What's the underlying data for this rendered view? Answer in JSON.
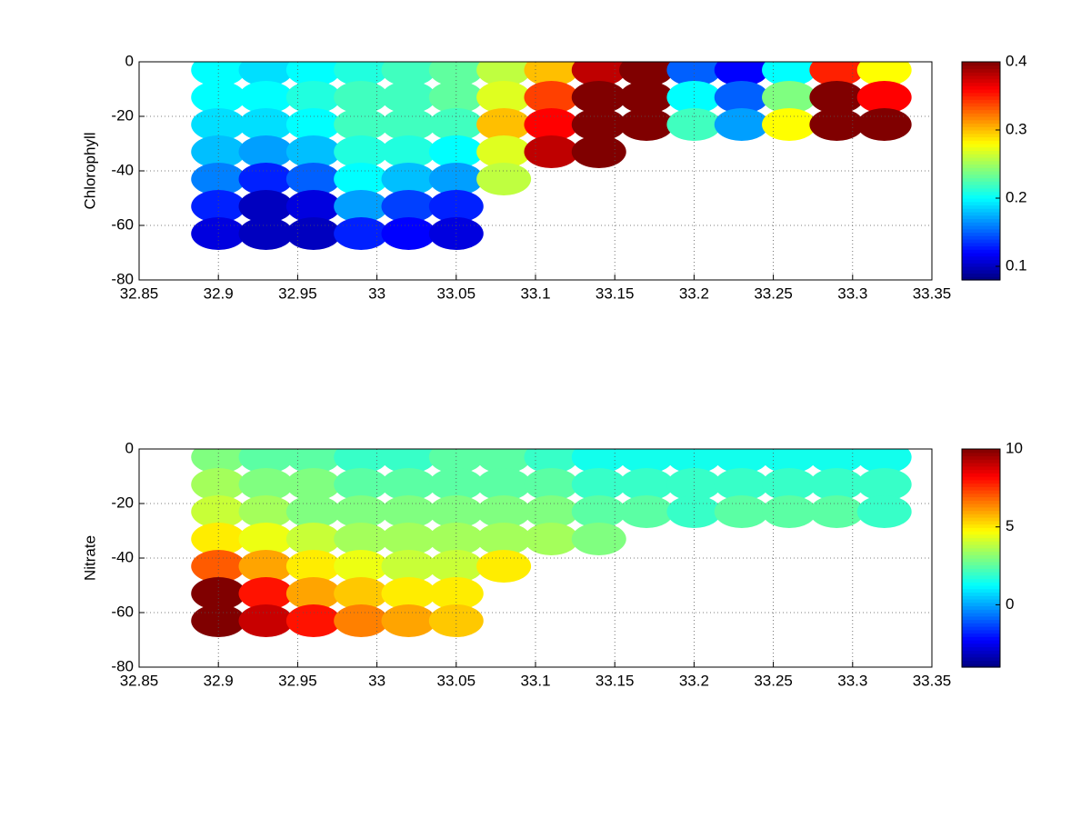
{
  "chart_data": [
    {
      "type": "scatter",
      "ylabel": "Chlorophyll",
      "colormap": "jet",
      "grid": true,
      "xlim": [
        32.85,
        33.35
      ],
      "xticks": [
        32.85,
        32.9,
        32.95,
        33,
        33.05,
        33.1,
        33.15,
        33.2,
        33.25,
        33.3,
        33.35
      ],
      "ylim": [
        -80,
        0
      ],
      "yticks": [
        -80,
        -60,
        -40,
        -20,
        0
      ],
      "clim": [
        0.08,
        0.4
      ],
      "cticks": [
        0.1,
        0.2,
        0.3,
        0.4
      ],
      "x": [
        32.9,
        32.9,
        32.9,
        32.9,
        32.9,
        32.9,
        32.9,
        32.93,
        32.93,
        32.93,
        32.93,
        32.93,
        32.93,
        32.93,
        32.96,
        32.96,
        32.96,
        32.96,
        32.96,
        32.96,
        32.96,
        32.99,
        32.99,
        32.99,
        32.99,
        32.99,
        32.99,
        32.99,
        33.02,
        33.02,
        33.02,
        33.02,
        33.02,
        33.02,
        33.02,
        33.05,
        33.05,
        33.05,
        33.05,
        33.05,
        33.05,
        33.05,
        33.08,
        33.08,
        33.08,
        33.08,
        33.08,
        33.11,
        33.11,
        33.11,
        33.11,
        33.14,
        33.14,
        33.14,
        33.14,
        33.17,
        33.17,
        33.17,
        33.2,
        33.2,
        33.2,
        33.23,
        33.23,
        33.23,
        33.26,
        33.26,
        33.26,
        33.29,
        33.29,
        33.29,
        33.32,
        33.32,
        33.32
      ],
      "y": [
        -3,
        -13,
        -23,
        -33,
        -43,
        -53,
        -63,
        -3,
        -13,
        -23,
        -33,
        -43,
        -53,
        -63,
        -3,
        -13,
        -23,
        -33,
        -43,
        -53,
        -63,
        -3,
        -13,
        -23,
        -33,
        -43,
        -53,
        -63,
        -3,
        -13,
        -23,
        -33,
        -43,
        -53,
        -63,
        -3,
        -13,
        -23,
        -33,
        -43,
        -53,
        -63,
        -3,
        -13,
        -23,
        -33,
        -43,
        -3,
        -13,
        -23,
        -33,
        -3,
        -13,
        -23,
        -33,
        -3,
        -13,
        -23,
        -3,
        -13,
        -23,
        -3,
        -13,
        -23,
        -3,
        -13,
        -23,
        -3,
        -13,
        -23,
        -3,
        -13,
        -23
      ],
      "c": [
        0.2,
        0.2,
        0.19,
        0.18,
        0.16,
        0.13,
        0.11,
        0.19,
        0.2,
        0.19,
        0.17,
        0.13,
        0.1,
        0.1,
        0.2,
        0.21,
        0.2,
        0.18,
        0.15,
        0.11,
        0.1,
        0.21,
        0.22,
        0.22,
        0.21,
        0.2,
        0.17,
        0.13,
        0.22,
        0.22,
        0.22,
        0.21,
        0.18,
        0.14,
        0.12,
        0.23,
        0.23,
        0.22,
        0.2,
        0.17,
        0.13,
        0.11,
        0.26,
        0.27,
        0.3,
        0.27,
        0.26,
        0.3,
        0.34,
        0.36,
        0.38,
        0.38,
        0.4,
        0.4,
        0.4,
        0.4,
        0.4,
        0.4,
        0.15,
        0.2,
        0.22,
        0.12,
        0.15,
        0.17,
        0.2,
        0.24,
        0.28,
        0.35,
        0.4,
        0.4,
        0.28,
        0.36,
        0.4
      ]
    },
    {
      "type": "scatter",
      "ylabel": "Nitrate",
      "colormap": "jet",
      "grid": true,
      "xlim": [
        32.85,
        33.35
      ],
      "xticks": [
        32.85,
        32.9,
        32.95,
        33,
        33.05,
        33.1,
        33.15,
        33.2,
        33.25,
        33.3,
        33.35
      ],
      "ylim": [
        -80,
        0
      ],
      "yticks": [
        -80,
        -60,
        -40,
        -20,
        0
      ],
      "clim": [
        -4,
        10
      ],
      "cticks": [
        0,
        5,
        10
      ],
      "x": [
        32.9,
        32.9,
        32.9,
        32.9,
        32.9,
        32.9,
        32.9,
        32.93,
        32.93,
        32.93,
        32.93,
        32.93,
        32.93,
        32.93,
        32.96,
        32.96,
        32.96,
        32.96,
        32.96,
        32.96,
        32.96,
        32.99,
        32.99,
        32.99,
        32.99,
        32.99,
        32.99,
        32.99,
        33.02,
        33.02,
        33.02,
        33.02,
        33.02,
        33.02,
        33.02,
        33.05,
        33.05,
        33.05,
        33.05,
        33.05,
        33.05,
        33.05,
        33.08,
        33.08,
        33.08,
        33.08,
        33.08,
        33.11,
        33.11,
        33.11,
        33.11,
        33.14,
        33.14,
        33.14,
        33.14,
        33.17,
        33.17,
        33.17,
        33.2,
        33.2,
        33.2,
        33.23,
        33.23,
        33.23,
        33.26,
        33.26,
        33.26,
        33.29,
        33.29,
        33.29,
        33.32,
        33.32,
        33.32
      ],
      "y": [
        -3,
        -13,
        -23,
        -33,
        -43,
        -53,
        -63,
        -3,
        -13,
        -23,
        -33,
        -43,
        -53,
        -63,
        -3,
        -13,
        -23,
        -33,
        -43,
        -53,
        -63,
        -3,
        -13,
        -23,
        -33,
        -43,
        -53,
        -63,
        -3,
        -13,
        -23,
        -33,
        -43,
        -53,
        -63,
        -3,
        -13,
        -23,
        -33,
        -43,
        -53,
        -63,
        -3,
        -13,
        -23,
        -33,
        -43,
        -3,
        -13,
        -23,
        -33,
        -3,
        -13,
        -23,
        -33,
        -3,
        -13,
        -23,
        -3,
        -13,
        -23,
        -3,
        -13,
        -23,
        -3,
        -13,
        -23,
        -3,
        -13,
        -23,
        -3,
        -13,
        -23
      ],
      "c": [
        3,
        3.5,
        4,
        5,
        7,
        10,
        10,
        2.5,
        3,
        3.5,
        4.5,
        6,
        8,
        9,
        2.5,
        3,
        3,
        4,
        5,
        6,
        8,
        2,
        2.5,
        3,
        3.5,
        4.5,
        5.5,
        6.5,
        2,
        2.5,
        3,
        3.5,
        4,
        5,
        6,
        2.5,
        2.5,
        3,
        3.5,
        4,
        5,
        5.5,
        2.5,
        2.5,
        3,
        3.5,
        5,
        2,
        2.5,
        3,
        3.5,
        1.5,
        2,
        2.5,
        3,
        1.5,
        2,
        2.5,
        1.5,
        2,
        2,
        1.5,
        2,
        2.5,
        1.5,
        2,
        2.5,
        1.5,
        2,
        2.5,
        1.5,
        2,
        2
      ]
    }
  ]
}
